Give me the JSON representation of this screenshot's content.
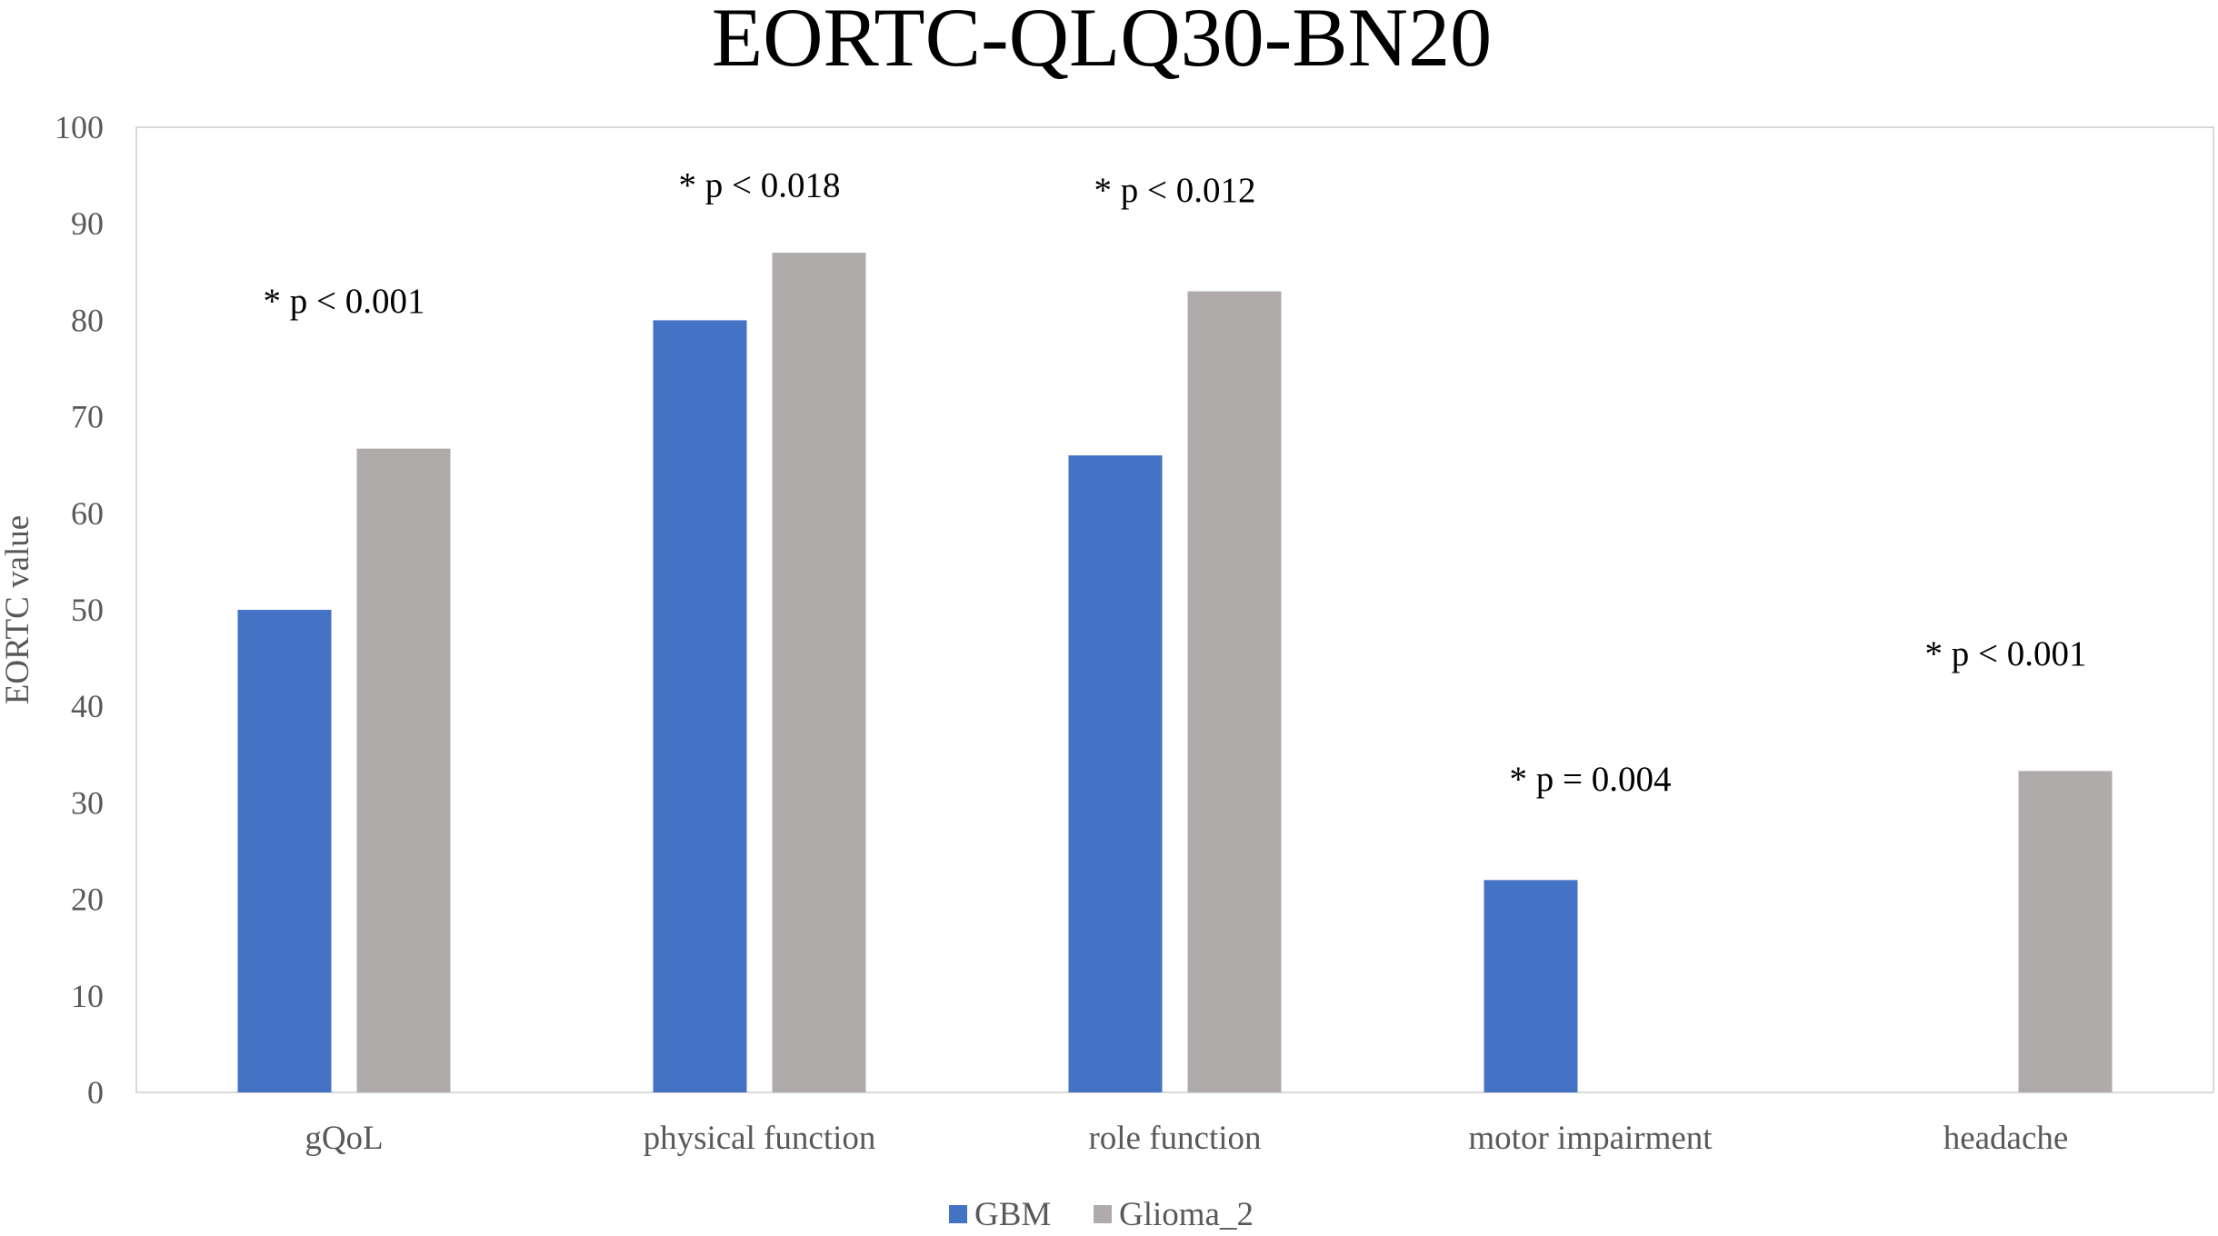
{
  "chart_data": {
    "type": "bar",
    "title": "EORTC-QLQ30-BN20",
    "ylabel": "EORTC value",
    "xlabel": "",
    "ylim": [
      0,
      100
    ],
    "yticks": [
      0,
      10,
      20,
      30,
      40,
      50,
      60,
      70,
      80,
      90,
      100
    ],
    "grid": false,
    "legend_position": "bottom",
    "categories": [
      "gQoL",
      "physical function",
      "role function",
      "motor impairment",
      "headache"
    ],
    "series": [
      {
        "name": "GBM",
        "color": "#4472C4",
        "values": [
          50,
          80,
          66,
          22,
          0
        ]
      },
      {
        "name": "Glioma_2",
        "color": "#AFABAB",
        "values": [
          66.7,
          87,
          83,
          0,
          33.3
        ]
      }
    ],
    "annotations": [
      {
        "category_index": 0,
        "text": "* p < 0.001",
        "y": 82
      },
      {
        "category_index": 1,
        "text": "* p < 0.018",
        "y": 94
      },
      {
        "category_index": 2,
        "text": "* p < 0.012",
        "y": 93.5
      },
      {
        "category_index": 3,
        "text": "* p = 0.004",
        "y": 32.5
      },
      {
        "category_index": 4,
        "text": "* p < 0.001",
        "y": 45.5
      }
    ]
  }
}
